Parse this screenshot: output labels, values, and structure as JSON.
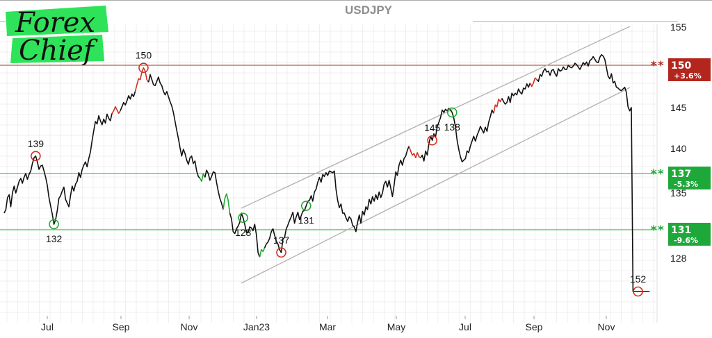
{
  "chart_data": {
    "type": "line",
    "title": "USDJPY",
    "logo": {
      "line1": "Forex",
      "line2": "Chief",
      "color": "#2ee35a"
    },
    "x_tick_labels": [
      "Jul",
      "Sep",
      "Nov",
      "Jan23",
      "Mar",
      "May",
      "Jul",
      "Sep",
      "Nov"
    ],
    "y_tick_labels": [
      "155",
      "145",
      "140",
      "135",
      "128"
    ],
    "ylim": [
      124,
      155
    ],
    "grid": true,
    "series": [
      {
        "values": [
          132.8,
          133.2,
          134.5,
          134.8,
          133.5,
          135.0,
          135.7,
          135.0,
          135.6,
          136.2,
          136.5,
          136.0,
          136.6,
          137.0,
          136.4,
          136.9,
          137.3,
          138.2,
          138.9,
          139.1,
          138.4,
          137.5,
          137.9,
          138.0,
          137.3,
          136.6,
          135.8,
          134.5,
          133.6,
          132.7,
          131.6,
          132.1,
          133.1,
          134.4,
          134.7,
          135.2,
          135.6,
          134.3,
          133.9,
          133.5,
          134.7,
          135.7,
          135.2,
          135.9,
          136.2,
          137.1,
          136.6,
          137.5,
          138.0,
          138.4,
          137.8,
          138.8,
          139.6,
          141.0,
          142.2,
          143.3,
          143.0,
          144.0,
          143.4,
          142.9,
          143.6,
          143.1,
          144.2,
          143.7,
          143.4,
          144.3,
          144.6,
          145.1,
          144.7,
          144.3,
          144.6,
          145.1,
          145.6,
          145.3,
          145.8,
          146.4,
          146.0,
          146.6,
          146.3,
          146.9,
          147.7,
          148.4,
          148.3,
          149.2,
          149.7,
          149.3,
          148.3,
          148.0,
          148.9,
          148.3,
          147.7,
          147.6,
          148.1,
          148.6,
          147.9,
          147.6,
          146.9,
          146.5,
          146.9,
          146.3,
          145.7,
          145.2,
          144.4,
          143.3,
          142.2,
          141.2,
          140.1,
          139.1,
          139.9,
          139.4,
          138.6,
          138.1,
          138.9,
          139.1,
          138.2,
          138.5,
          137.3,
          136.7,
          136.5,
          136.2,
          137.0,
          136.6,
          137.4,
          137.0,
          136.3,
          136.7,
          137.2,
          137.1,
          136.1,
          135.2,
          134.4,
          133.9,
          133.2,
          134.4,
          134.9,
          134.2,
          132.8,
          132.2,
          130.8,
          130.6,
          131.1,
          131.4,
          131.8,
          132.8,
          132.3,
          131.6,
          130.7,
          130.7,
          131.3,
          131.2,
          130.9,
          131.6,
          130.5,
          128.6,
          128.1,
          128.9,
          128.7,
          129.1,
          129.5,
          129.7,
          130.1,
          130.8,
          131.1,
          130.4,
          129.8,
          129.5,
          128.9,
          128.6,
          130.0,
          130.2,
          131.1,
          131.5,
          132.0,
          132.4,
          132.9,
          131.7,
          132.4,
          132.9,
          132.1,
          132.5,
          133.0,
          133.1,
          133.6,
          134.1,
          134.2,
          134.7,
          134.1,
          135.1,
          135.4,
          136.1,
          136.6,
          136.1,
          136.9,
          136.7,
          137.1,
          136.8,
          137.3,
          137.2,
          137.1,
          137.3,
          135.4,
          134.2,
          133.4,
          133.8,
          132.8,
          132.8,
          132.3,
          131.9,
          132.4,
          132.2,
          131.5,
          131.3,
          130.8,
          131.8,
          132.6,
          131.7,
          133.0,
          132.6,
          133.5,
          133.2,
          134.3,
          133.8,
          134.6,
          134.1,
          134.8,
          134.3,
          135.1,
          134.5,
          135.0,
          135.9,
          136.2,
          135.6,
          136.3,
          135.5,
          134.6,
          135.8,
          137.2,
          136.8,
          138.0,
          138.6,
          138.0,
          138.8,
          139.1,
          139.8,
          140.3,
          139.7,
          139.2,
          139.4,
          138.9,
          139.5,
          139.0,
          138.9,
          139.2,
          138.5,
          139.7,
          139.2,
          140.6,
          141.5,
          141.0,
          141.8,
          141.4,
          142.7,
          143.2,
          143.8,
          144.7,
          144.4,
          144.8,
          144.6,
          144.9,
          144.7,
          144.4,
          143.7,
          142.6,
          141.0,
          139.9,
          139.0,
          138.4,
          138.6,
          138.8,
          139.7,
          139.5,
          140.3,
          140.9,
          141.5,
          140.9,
          141.6,
          142.1,
          142.7,
          142.3,
          141.9,
          142.6,
          142.1,
          143.2,
          143.9,
          144.7,
          144.3,
          145.3,
          145.1,
          146.0,
          145.7,
          146.1,
          145.7,
          145.4,
          145.6,
          146.3,
          145.6,
          146.7,
          146.4,
          146.7,
          146.5,
          147.2,
          146.8,
          146.6,
          147.3,
          147.2,
          147.8,
          147.4,
          147.9,
          147.5,
          147.9,
          148.5,
          148.3,
          148.1,
          148.9,
          148.7,
          149.3,
          149.6,
          149.2,
          149.3,
          148.8,
          149.4,
          149.5,
          149.0,
          148.7,
          149.6,
          149.3,
          149.4,
          149.8,
          149.5,
          149.5,
          150.0,
          149.8,
          149.7,
          149.9,
          150.3,
          150.1,
          149.8,
          149.5,
          149.9,
          150.4,
          150.1,
          150.5,
          149.9,
          150.7,
          150.9,
          151.3,
          150.9,
          150.5,
          150.4,
          151.2,
          151.6,
          151.4,
          150.9,
          149.7,
          148.7,
          148.4,
          149.0,
          147.9,
          148.1,
          147.4,
          147.3,
          147.1,
          147.0,
          147.2,
          147.4,
          146.8,
          145.1,
          144.6,
          145.0
        ]
      }
    ],
    "peak_labels": [
      "139",
      "132",
      "150",
      "137",
      "128",
      "131",
      "145",
      "138",
      "152"
    ],
    "price_tags": [
      {
        "level": 150,
        "value": "150",
        "change": "+3.6%",
        "color": "#b3261e",
        "stars": "**"
      },
      {
        "level": 137,
        "value": "137",
        "change": "-5.3%",
        "color": "#1fa83a",
        "stars": "**"
      },
      {
        "level": 131,
        "value": "131",
        "change": "-9.6%",
        "color": "#1fa83a",
        "stars": "**"
      }
    ],
    "colors": {
      "line": "#111111",
      "up_highlight": "#d03020",
      "down_highlight": "#22aa33",
      "resistance": "#a03a2a",
      "support": "#44cc44",
      "channel": "#b4b4b4"
    }
  }
}
